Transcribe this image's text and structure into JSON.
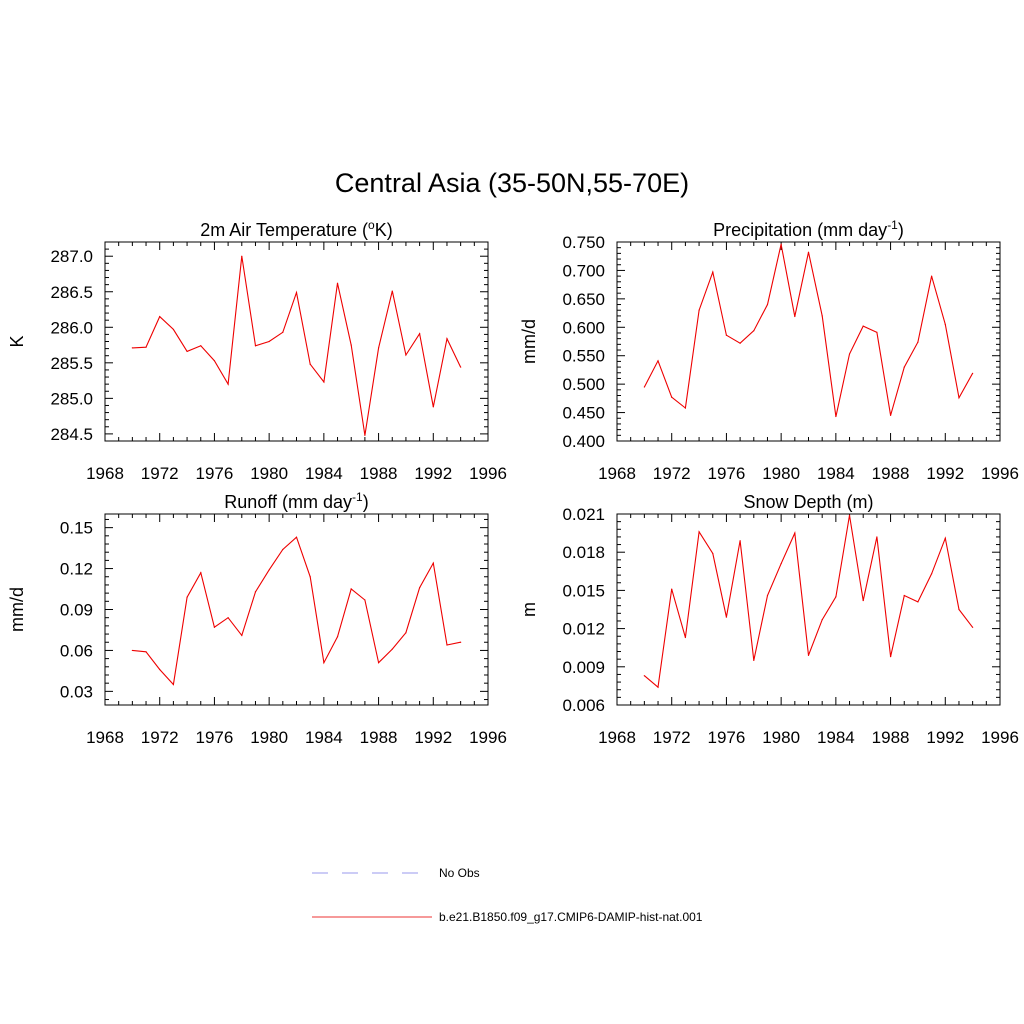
{
  "figure": {
    "title": "Central Asia (35-50N,55-70E)"
  },
  "legend": [
    {
      "label": "No Obs",
      "color": "#9999ee",
      "dash": true
    },
    {
      "label": "b.e21.B1850.f09_g17.CMIP6-DAMIP-hist-nat.001",
      "color": "#ee3333",
      "dash": false
    }
  ],
  "chart_data": [
    {
      "type": "line",
      "title_parts": [
        "2m Air Temperature (",
        "o",
        "K)"
      ],
      "title_style": "sup",
      "ylabel": "K",
      "xlim": [
        1968,
        1996
      ],
      "xticks": [
        1968,
        1972,
        1976,
        1980,
        1984,
        1988,
        1992,
        1996
      ],
      "ylim": [
        284.4,
        287.2
      ],
      "yticks": [
        "284.5",
        "285.0",
        "285.5",
        "286.0",
        "286.5",
        "287.0"
      ],
      "x": [
        1970,
        1971,
        1972,
        1973,
        1974,
        1975,
        1976,
        1977,
        1978,
        1979,
        1980,
        1981,
        1982,
        1983,
        1984,
        1985,
        1986,
        1987,
        1988,
        1989,
        1990,
        1991,
        1992,
        1993,
        1994
      ],
      "series": [
        {
          "values": [
            285.71,
            285.72,
            286.15,
            285.97,
            285.66,
            285.74,
            285.53,
            285.2,
            287.0,
            285.74,
            285.8,
            285.93,
            286.49,
            285.48,
            285.23,
            286.62,
            285.75,
            284.48,
            285.71,
            286.51,
            285.61,
            285.91,
            284.88,
            285.84,
            285.44
          ],
          "color": "#ee0000"
        }
      ]
    },
    {
      "type": "line",
      "title_parts": [
        "Precipitation (mm day",
        "-1",
        ")"
      ],
      "title_style": "sup",
      "ylabel": "mm/d",
      "xlim": [
        1968,
        1996
      ],
      "xticks": [
        1968,
        1972,
        1976,
        1980,
        1984,
        1988,
        1992,
        1996
      ],
      "ylim": [
        0.4,
        0.75
      ],
      "yticks": [
        "0.400",
        "0.450",
        "0.500",
        "0.550",
        "0.600",
        "0.650",
        "0.700",
        "0.750"
      ],
      "x": [
        1970,
        1971,
        1972,
        1973,
        1974,
        1975,
        1976,
        1977,
        1978,
        1979,
        1980,
        1981,
        1982,
        1983,
        1984,
        1985,
        1986,
        1987,
        1988,
        1989,
        1990,
        1991,
        1992,
        1993,
        1994
      ],
      "series": [
        {
          "values": [
            0.495,
            0.541,
            0.477,
            0.458,
            0.63,
            0.697,
            0.586,
            0.572,
            0.594,
            0.64,
            0.746,
            0.619,
            0.732,
            0.62,
            0.443,
            0.553,
            0.602,
            0.591,
            0.445,
            0.53,
            0.574,
            0.69,
            0.605,
            0.476,
            0.519
          ],
          "color": "#ee0000"
        }
      ]
    },
    {
      "type": "line",
      "title_parts": [
        "Runoff (mm day",
        "-1",
        ")"
      ],
      "title_style": "sup",
      "ylabel": "mm/d",
      "xlim": [
        1968,
        1996
      ],
      "xticks": [
        1968,
        1972,
        1976,
        1980,
        1984,
        1988,
        1992,
        1996
      ],
      "ylim": [
        0.02,
        0.16
      ],
      "yticks": [
        "0.03",
        "0.06",
        "0.09",
        "0.12",
        "0.15"
      ],
      "x": [
        1970,
        1971,
        1972,
        1973,
        1974,
        1975,
        1976,
        1977,
        1978,
        1979,
        1980,
        1981,
        1982,
        1983,
        1984,
        1985,
        1986,
        1987,
        1988,
        1989,
        1990,
        1991,
        1992,
        1993,
        1994
      ],
      "series": [
        {
          "values": [
            0.06,
            0.059,
            0.046,
            0.035,
            0.099,
            0.117,
            0.077,
            0.084,
            0.071,
            0.103,
            0.119,
            0.134,
            0.143,
            0.114,
            0.051,
            0.07,
            0.105,
            0.097,
            0.051,
            0.061,
            0.073,
            0.106,
            0.124,
            0.064,
            0.066
          ],
          "color": "#ee0000"
        }
      ]
    },
    {
      "type": "line",
      "title_parts": [
        "Snow Depth (m)"
      ],
      "title_style": "plain",
      "ylabel": "m",
      "xlim": [
        1968,
        1996
      ],
      "xticks": [
        1968,
        1972,
        1976,
        1980,
        1984,
        1988,
        1992,
        1996
      ],
      "ylim": [
        0.006,
        0.021
      ],
      "yticks": [
        "0.006",
        "0.009",
        "0.012",
        "0.015",
        "0.018",
        "0.021"
      ],
      "x": [
        1970,
        1971,
        1972,
        1973,
        1974,
        1975,
        1976,
        1977,
        1978,
        1979,
        1980,
        1981,
        1982,
        1983,
        1984,
        1985,
        1986,
        1987,
        1988,
        1989,
        1990,
        1991,
        1992,
        1993,
        1994
      ],
      "series": [
        {
          "values": [
            0.0083,
            0.0074,
            0.0151,
            0.0113,
            0.0196,
            0.0179,
            0.0129,
            0.0189,
            0.0095,
            0.0146,
            0.0171,
            0.0195,
            0.0099,
            0.0127,
            0.0145,
            0.0209,
            0.0142,
            0.0192,
            0.0098,
            0.0146,
            0.0141,
            0.0163,
            0.0191,
            0.0135,
            0.0121
          ],
          "color": "#ee0000"
        }
      ]
    }
  ]
}
